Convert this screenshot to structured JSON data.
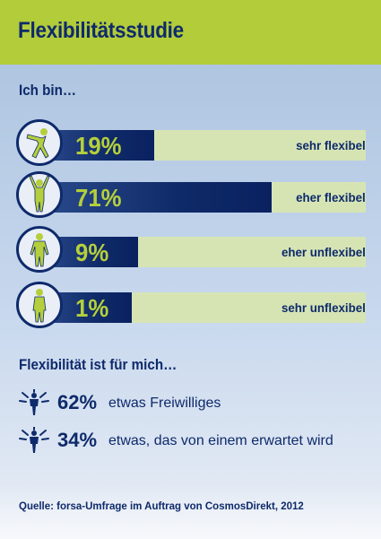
{
  "header": {
    "title": "Flexibilitätsstudie"
  },
  "chart_data": {
    "type": "bar",
    "title": "Ich bin…",
    "categories": [
      "sehr flexibel",
      "eher flexibel",
      "eher unflexibel",
      "sehr unflexibel"
    ],
    "values": [
      19,
      71,
      9,
      1
    ],
    "value_labels": [
      "19%",
      "71%",
      "9%",
      "1%"
    ],
    "xlim": [
      0,
      100
    ],
    "orientation": "horizontal",
    "colors": {
      "bar": "#0f2a68",
      "track": "#d6e4b4",
      "value_label": "#b5cf3c",
      "text": "#0e2a6b"
    }
  },
  "definition": {
    "title": "Flexibilität ist für mich…",
    "items": [
      {
        "value": "62%",
        "text": "etwas Freiwilliges"
      },
      {
        "value": "34%",
        "text": "etwas, das von einem erwartet wird"
      }
    ]
  },
  "source": "Quelle: forsa-Umfrage im Auftrag von CosmosDirekt, 2012",
  "colors": {
    "header_bg": "#b2cc3a",
    "navy": "#0e2a6b",
    "lime": "#b5cf3c"
  }
}
